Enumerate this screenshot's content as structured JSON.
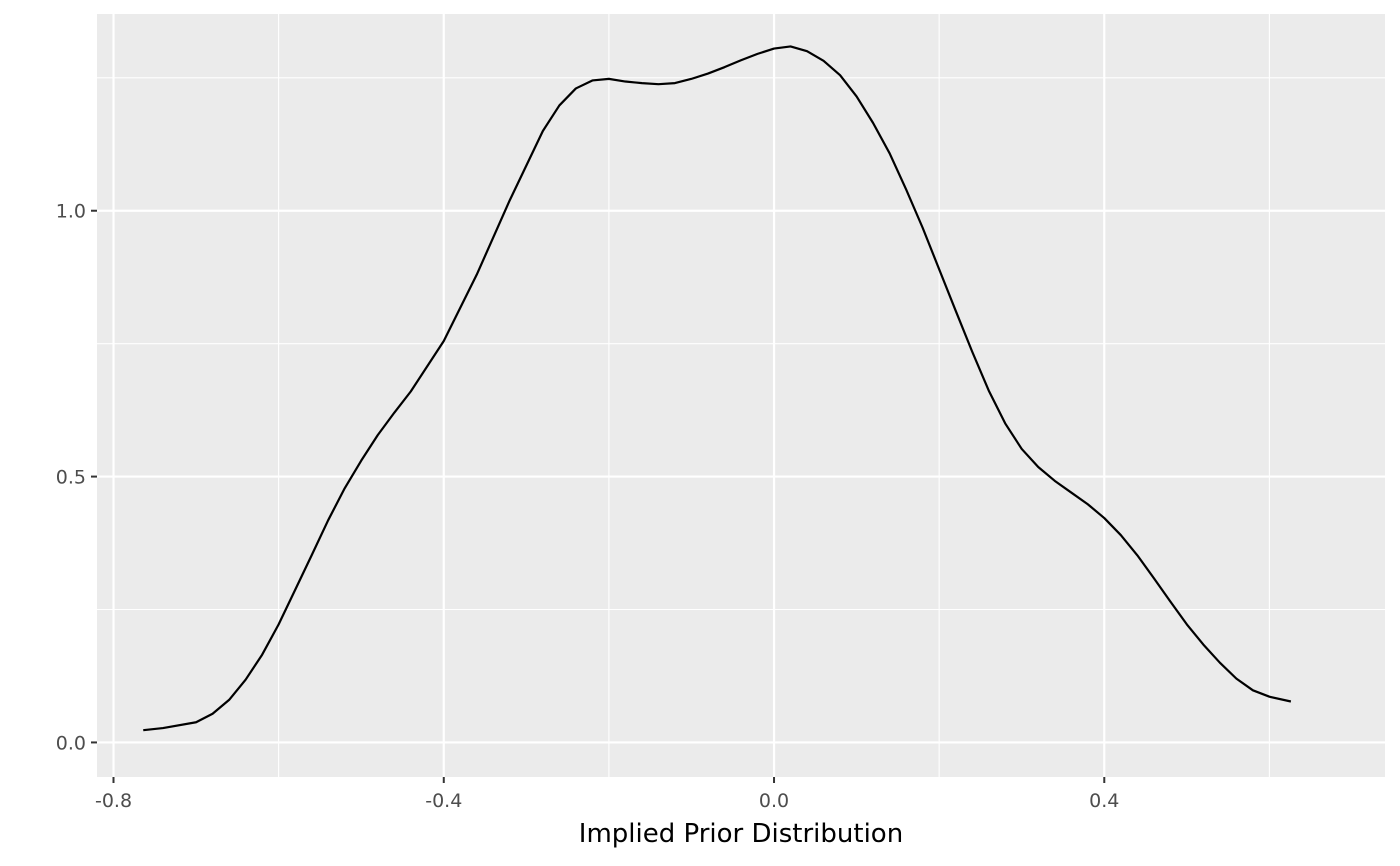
{
  "chart_data": {
    "type": "line",
    "title": "",
    "xlabel": "Implied Prior Distribution",
    "ylabel": "",
    "xlim": [
      -0.82,
      0.74
    ],
    "ylim": [
      -0.065,
      1.37
    ],
    "x_ticks": [
      -0.8,
      -0.4,
      0.0,
      0.4
    ],
    "x_tick_labels": [
      "-0.8",
      "-0.4",
      "0.0",
      "0.4"
    ],
    "x_minor_ticks": [
      -0.6,
      -0.2,
      0.2,
      0.6
    ],
    "y_ticks": [
      0.0,
      0.5,
      1.0
    ],
    "y_tick_labels": [
      "0.0",
      "0.5",
      "1.0"
    ],
    "y_minor_ticks": [
      0.25,
      0.75,
      1.25
    ],
    "grid": true,
    "legend": "none",
    "colors": {
      "panel": "#ebebeb",
      "grid": "#ffffff",
      "line": "#000000",
      "tick": "#333333"
    },
    "series": [
      {
        "x": [
          -0.764,
          -0.74,
          -0.7,
          -0.68,
          -0.66,
          -0.64,
          -0.62,
          -0.6,
          -0.58,
          -0.56,
          -0.54,
          -0.52,
          -0.5,
          -0.48,
          -0.46,
          -0.44,
          -0.4,
          -0.36,
          -0.32,
          -0.28,
          -0.26,
          -0.24,
          -0.22,
          -0.2,
          -0.18,
          -0.16,
          -0.14,
          -0.12,
          -0.1,
          -0.08,
          -0.06,
          -0.04,
          -0.02,
          0.0,
          0.02,
          0.04,
          0.06,
          0.08,
          0.1,
          0.12,
          0.14,
          0.16,
          0.18,
          0.2,
          0.22,
          0.24,
          0.26,
          0.28,
          0.3,
          0.32,
          0.34,
          0.36,
          0.38,
          0.4,
          0.42,
          0.44,
          0.46,
          0.48,
          0.5,
          0.52,
          0.54,
          0.56,
          0.58,
          0.6,
          0.626
        ],
        "y": [
          0.023,
          0.027,
          0.038,
          0.054,
          0.08,
          0.118,
          0.165,
          0.222,
          0.287,
          0.352,
          0.418,
          0.478,
          0.53,
          0.578,
          0.62,
          0.66,
          0.755,
          0.88,
          1.02,
          1.15,
          1.198,
          1.23,
          1.245,
          1.248,
          1.243,
          1.24,
          1.238,
          1.24,
          1.248,
          1.258,
          1.27,
          1.283,
          1.295,
          1.305,
          1.309,
          1.3,
          1.282,
          1.255,
          1.215,
          1.165,
          1.108,
          1.04,
          0.968,
          0.89,
          0.812,
          0.735,
          0.662,
          0.6,
          0.552,
          0.518,
          0.492,
          0.47,
          0.448,
          0.422,
          0.39,
          0.352,
          0.309,
          0.265,
          0.222,
          0.184,
          0.15,
          0.12,
          0.098,
          0.086,
          0.077
        ]
      }
    ]
  }
}
